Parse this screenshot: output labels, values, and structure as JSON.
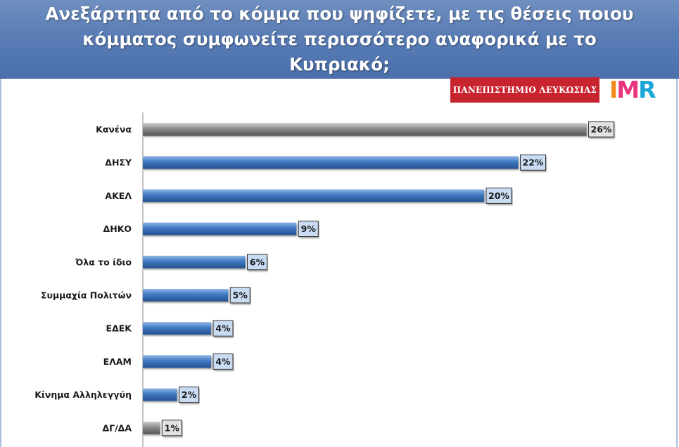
{
  "header": {
    "title_line1": "Ανεξάρτητα από το κόμμα που ψηφίζετε, με τις θέσεις ποιου",
    "title_line2": "κόμματος συμφωνείτε περισσότερο αναφορικά με το",
    "title_line3": "Κυπριακό;"
  },
  "logos": {
    "university": "ΠΑΝΕΠΙΣΤΗΜΙΟ ΛΕΥΚΩΣΙΑΣ",
    "imr": "IMR"
  },
  "colors": {
    "header": "#5a7db6",
    "bar_blue": "#3f78c2",
    "bar_gray": "#8c8c8c",
    "label_box_blue": "#c9dcf3",
    "label_box_gray": "#e2e2e2",
    "university_logo": "#c8242f"
  },
  "chart_data": {
    "type": "bar",
    "orientation": "horizontal",
    "categories": [
      "Κανένα",
      "ΔΗΣΥ",
      "ΑΚΕΛ",
      "ΔΗΚΟ",
      "Όλα το ίδιο",
      "Συμμαχία Πολιτών",
      "ΕΔΕΚ",
      "ΕΛΑΜ",
      "Κίνημα Αλληλεγγύη",
      "ΔΓ/ΔΑ"
    ],
    "values": [
      26,
      22,
      20,
      9,
      6,
      5,
      4,
      4,
      2,
      1
    ],
    "value_labels": [
      "26%",
      "22%",
      "20%",
      "9%",
      "6%",
      "5%",
      "4%",
      "4%",
      "2%",
      "1%"
    ],
    "bar_colors": [
      "gray",
      "blue",
      "blue",
      "blue",
      "blue",
      "blue",
      "blue",
      "blue",
      "blue",
      "gray"
    ],
    "unit": "%",
    "xlim": [
      0,
      30
    ],
    "grid": false,
    "legend": "none"
  }
}
